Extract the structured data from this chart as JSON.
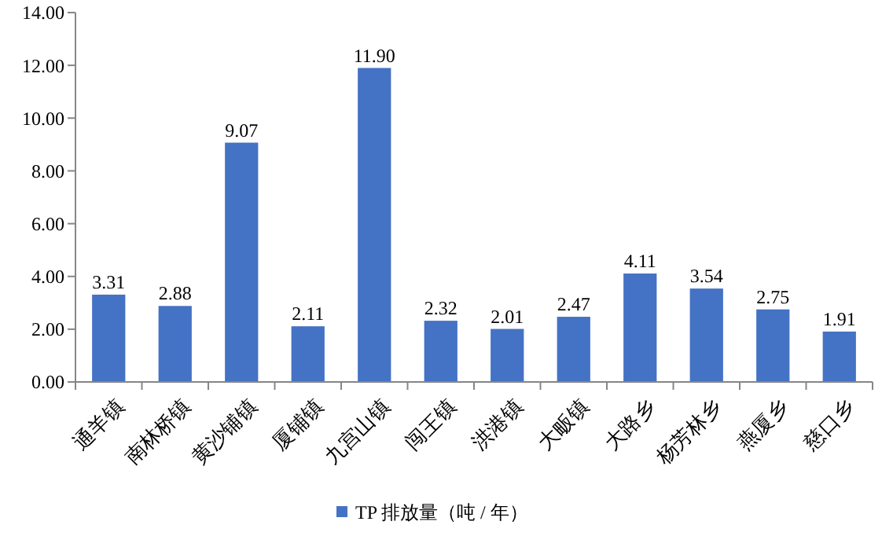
{
  "chart_data": {
    "type": "bar",
    "categories": [
      "通羊镇",
      "南林桥镇",
      "黄沙铺镇",
      "厦铺镇",
      "九宫山镇",
      "闯王镇",
      "洪港镇",
      "大畈镇",
      "大路乡",
      "杨芳林乡",
      "燕厦乡",
      "慈口乡"
    ],
    "series": [
      {
        "name": "TP 排放量（吨 / 年）",
        "color": "#4472c4",
        "values": [
          3.31,
          2.88,
          9.07,
          2.11,
          11.9,
          2.32,
          2.01,
          2.47,
          4.11,
          3.54,
          2.75,
          1.91
        ],
        "value_labels": [
          "3.31",
          "2.88",
          "9.07",
          "2.11",
          "11.90",
          "2.32",
          "2.01",
          "2.47",
          "4.11",
          "3.54",
          "2.75",
          "1.91"
        ]
      }
    ],
    "ylim": [
      0,
      14
    ],
    "yticks": [
      {
        "value": 0,
        "label": "0.00"
      },
      {
        "value": 2,
        "label": "2.00"
      },
      {
        "value": 4,
        "label": "4.00"
      },
      {
        "value": 6,
        "label": "6.00"
      },
      {
        "value": 8,
        "label": "8.00"
      },
      {
        "value": 10,
        "label": "10.00"
      },
      {
        "value": 12,
        "label": "12.00"
      },
      {
        "value": 14,
        "label": "14.00"
      }
    ],
    "grid": false,
    "legend": "bottom"
  }
}
